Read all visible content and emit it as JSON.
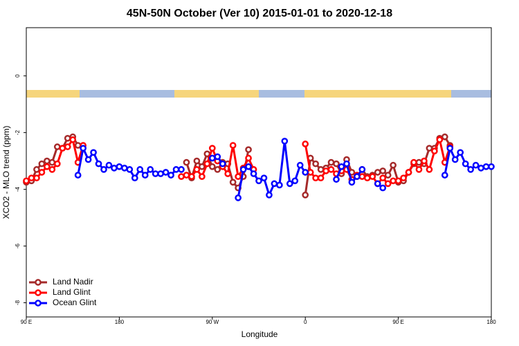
{
  "chart_data": {
    "type": "line",
    "title": "45N-50N October (Ver 10)   2015-01-01 to 2020-12-18",
    "x_label": "Longitude",
    "y_label": "XCO2 - MLO trend (ppm)",
    "x": [
      90,
      95,
      100,
      105,
      110,
      115,
      120,
      125,
      130,
      135,
      140,
      145,
      150,
      155,
      160,
      165,
      170,
      175,
      180,
      185,
      190,
      195,
      200,
      205,
      210,
      215,
      220,
      225,
      230,
      235,
      240,
      245,
      250,
      255,
      260,
      265,
      270,
      275,
      280,
      285,
      290,
      295,
      300,
      305,
      310,
      315,
      320,
      325,
      330,
      335,
      340,
      345,
      350,
      355,
      360,
      365,
      370,
      375,
      380,
      385,
      390,
      395,
      400,
      405,
      410,
      415,
      420,
      425,
      430,
      435,
      440,
      445,
      450,
      455,
      460,
      465,
      470,
      475,
      480,
      485,
      490,
      495,
      500,
      505,
      510,
      515,
      520,
      525,
      530,
      535,
      540
    ],
    "xlim": [
      90,
      540
    ],
    "xticks": [
      {
        "value": 90,
        "label": "90 E"
      },
      180,
      {
        "value": 270,
        "label": "90 W"
      },
      {
        "value": 360,
        "label": "0"
      },
      {
        "value": 450,
        "label": "90 E"
      },
      {
        "value": 540,
        "label": "180"
      }
    ],
    "ylim": [
      -8.5,
      1.7
    ],
    "yticks": [
      0,
      -2,
      -4,
      -6,
      -8
    ],
    "legend": "bottom-left",
    "series": [
      {
        "name": "Land Nadir",
        "color": "#a52a2a",
        "values": [
          -3.75,
          -3.7,
          -3.3,
          -3.1,
          -3.0,
          -3.05,
          -2.5,
          -2.55,
          -2.2,
          -2.15,
          -2.45,
          null,
          null,
          null,
          null,
          null,
          null,
          null,
          null,
          null,
          null,
          null,
          null,
          null,
          null,
          null,
          null,
          null,
          null,
          null,
          null,
          -3.05,
          -3.6,
          -3.0,
          -3.2,
          -2.75,
          -3.2,
          -3.3,
          -3.05,
          -3.1,
          -3.75,
          -3.95,
          -3.55,
          -2.6,
          null,
          null,
          null,
          null,
          null,
          null,
          null,
          null,
          null,
          null,
          -4.2,
          -2.9,
          -3.1,
          -3.3,
          -3.25,
          -3.05,
          -3.1,
          -3.45,
          -2.95,
          -3.4,
          -3.55,
          -3.3,
          -3.55,
          -3.5,
          -3.4,
          -3.35,
          -3.5,
          -3.15,
          -3.75,
          -3.7,
          -3.4,
          -3.1,
          -3.05,
          -3.1,
          -2.55,
          -2.55,
          -2.2,
          -2.15,
          -2.45,
          null,
          null,
          null,
          null,
          null,
          null,
          null,
          null
        ]
      },
      {
        "name": "Land Glint",
        "color": "#ff0000",
        "values": [
          -3.7,
          -3.6,
          -3.6,
          -3.4,
          -3.2,
          -3.3,
          -3.1,
          -2.55,
          -2.5,
          -2.25,
          -3.05,
          -2.45,
          null,
          null,
          null,
          null,
          null,
          null,
          null,
          null,
          null,
          null,
          null,
          null,
          null,
          null,
          null,
          null,
          null,
          null,
          -3.55,
          -3.5,
          -3.55,
          -3.3,
          -3.55,
          -3.1,
          -2.55,
          -3.0,
          -3.2,
          -3.45,
          -2.45,
          -3.55,
          -3.25,
          -2.9,
          -3.3,
          null,
          null,
          null,
          null,
          null,
          null,
          null,
          null,
          null,
          -2.4,
          -3.4,
          -3.6,
          -3.6,
          -3.35,
          -3.3,
          -3.45,
          -3.35,
          -3.3,
          -3.65,
          -3.5,
          -3.55,
          -3.6,
          -3.55,
          -3.8,
          -3.6,
          -3.8,
          -3.7,
          -3.7,
          -3.6,
          -3.4,
          -3.05,
          -3.3,
          -3.0,
          -3.3,
          -2.65,
          -2.25,
          -3.05,
          -2.5,
          null,
          null,
          null,
          null,
          null,
          null,
          null,
          null
        ]
      },
      {
        "name": "Ocean Glint",
        "color": "#0000ff",
        "values": [
          null,
          null,
          null,
          null,
          null,
          null,
          null,
          null,
          null,
          null,
          -3.5,
          -2.55,
          -2.95,
          -2.7,
          -3.1,
          -3.3,
          -3.15,
          -3.25,
          -3.2,
          -3.25,
          -3.3,
          -3.6,
          -3.3,
          -3.5,
          -3.3,
          -3.45,
          -3.45,
          -3.4,
          -3.5,
          -3.3,
          -3.3,
          null,
          null,
          null,
          null,
          null,
          -2.9,
          -2.85,
          -3.1,
          null,
          null,
          -4.3,
          -3.3,
          -3.2,
          -3.45,
          -3.7,
          -3.6,
          -4.2,
          -3.8,
          -3.85,
          -2.3,
          -3.8,
          -3.7,
          -3.15,
          -3.4,
          null,
          null,
          null,
          null,
          null,
          -3.65,
          -3.2,
          -3.1,
          -3.75,
          -3.55,
          -3.3,
          null,
          null,
          -3.8,
          -3.95,
          null,
          null,
          null,
          null,
          null,
          null,
          null,
          null,
          null,
          null,
          null,
          -3.5,
          -2.55,
          -2.95,
          -2.7,
          -3.1,
          -3.3,
          -3.15,
          -3.25,
          -3.2,
          -3.2
        ]
      }
    ]
  }
}
